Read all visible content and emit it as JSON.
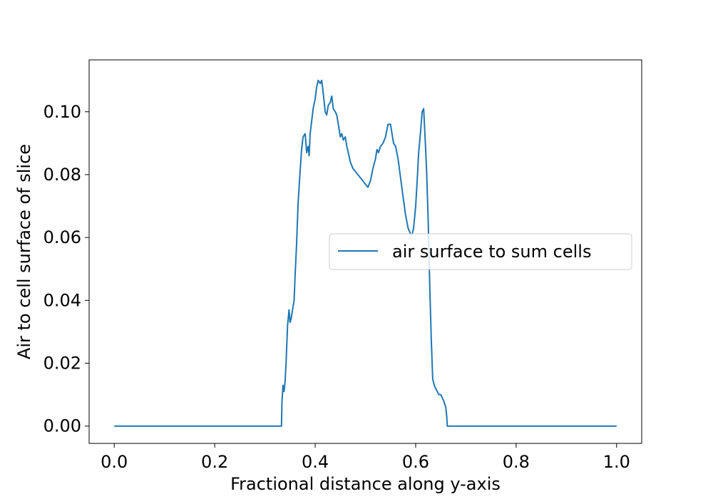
{
  "chart_data": {
    "type": "line",
    "title": "",
    "xlabel": "Fractional distance along y-axis",
    "ylabel": "Air to cell surface of slice",
    "xlim": [
      -0.05,
      1.05
    ],
    "ylim": [
      -0.0055,
      0.1165
    ],
    "xticks": [
      "0.0",
      "0.2",
      "0.4",
      "0.6",
      "0.8",
      "1.0"
    ],
    "yticks": [
      "0.00",
      "0.02",
      "0.04",
      "0.06",
      "0.08",
      "0.10"
    ],
    "grid": false,
    "legend_position": "center-right",
    "series": [
      {
        "name": "air surface to sum cells",
        "color": "#1f77b4",
        "x": [
          0.0,
          0.1,
          0.2,
          0.3,
          0.333,
          0.334,
          0.336,
          0.338,
          0.34,
          0.342,
          0.345,
          0.348,
          0.35,
          0.352,
          0.355,
          0.358,
          0.36,
          0.363,
          0.366,
          0.37,
          0.373,
          0.376,
          0.38,
          0.383,
          0.386,
          0.388,
          0.39,
          0.393,
          0.396,
          0.4,
          0.403,
          0.406,
          0.41,
          0.413,
          0.416,
          0.42,
          0.423,
          0.426,
          0.43,
          0.433,
          0.436,
          0.44,
          0.443,
          0.446,
          0.45,
          0.453,
          0.456,
          0.46,
          0.463,
          0.466,
          0.47,
          0.475,
          0.48,
          0.485,
          0.49,
          0.495,
          0.5,
          0.505,
          0.51,
          0.515,
          0.52,
          0.523,
          0.526,
          0.53,
          0.535,
          0.54,
          0.545,
          0.55,
          0.553,
          0.556,
          0.56,
          0.565,
          0.57,
          0.575,
          0.58,
          0.585,
          0.59,
          0.593,
          0.596,
          0.6,
          0.603,
          0.606,
          0.61,
          0.613,
          0.616,
          0.62,
          0.622,
          0.625,
          0.628,
          0.631,
          0.634,
          0.637,
          0.64,
          0.643,
          0.646,
          0.65,
          0.653,
          0.656,
          0.658,
          0.66,
          0.662,
          0.663,
          0.665,
          0.7,
          0.8,
          0.9,
          1.0
        ],
        "y": [
          0.0,
          0.0,
          0.0,
          0.0,
          0.0,
          0.008,
          0.013,
          0.011,
          0.014,
          0.02,
          0.032,
          0.037,
          0.033,
          0.034,
          0.037,
          0.04,
          0.048,
          0.058,
          0.071,
          0.081,
          0.088,
          0.092,
          0.093,
          0.087,
          0.089,
          0.086,
          0.093,
          0.097,
          0.101,
          0.104,
          0.108,
          0.11,
          0.109,
          0.11,
          0.106,
          0.1,
          0.099,
          0.102,
          0.103,
          0.105,
          0.101,
          0.1,
          0.099,
          0.096,
          0.092,
          0.093,
          0.091,
          0.092,
          0.089,
          0.087,
          0.084,
          0.082,
          0.081,
          0.08,
          0.079,
          0.078,
          0.077,
          0.076,
          0.078,
          0.082,
          0.085,
          0.088,
          0.087,
          0.089,
          0.09,
          0.092,
          0.096,
          0.096,
          0.093,
          0.09,
          0.089,
          0.085,
          0.079,
          0.073,
          0.067,
          0.063,
          0.061,
          0.061,
          0.063,
          0.07,
          0.078,
          0.087,
          0.094,
          0.1,
          0.101,
          0.088,
          0.08,
          0.065,
          0.045,
          0.028,
          0.015,
          0.013,
          0.012,
          0.011,
          0.01,
          0.01,
          0.009,
          0.008,
          0.007,
          0.006,
          0.003,
          0.0,
          0.0,
          0.0,
          0.0,
          0.0,
          0.0
        ]
      }
    ]
  }
}
